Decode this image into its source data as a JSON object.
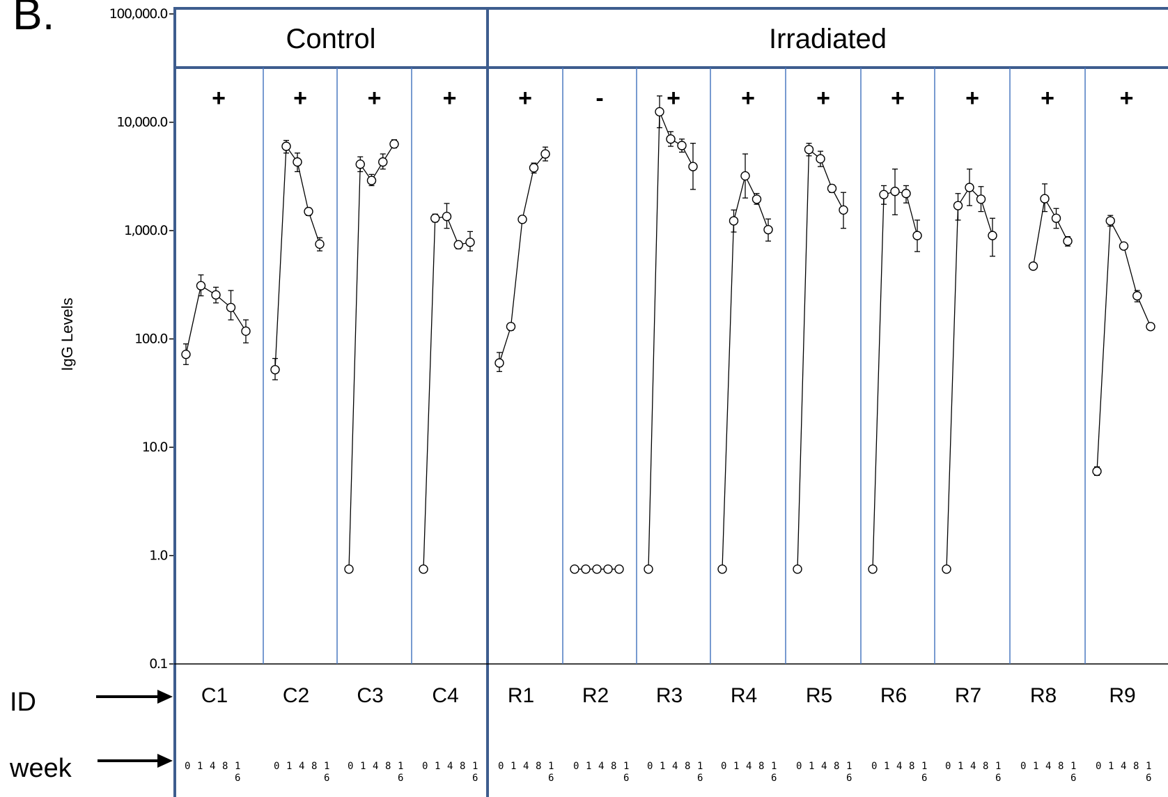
{
  "panel_letter": "B.",
  "row_labels": {
    "id": "ID",
    "week": "week"
  },
  "chart_data": {
    "type": "line",
    "scale": "log",
    "ylabel": "IgG Levels",
    "ylim": [
      0.1,
      100000
    ],
    "y_ticks": [
      "100,000.0",
      "10,000.0",
      "1,000.0",
      "100.0",
      "10.0",
      "1.0",
      "0.1"
    ],
    "x": [
      0,
      1,
      4,
      8,
      16
    ],
    "x_tick_labels": [
      "0",
      "1",
      "4",
      "8",
      "1\n6"
    ],
    "error_bars": true,
    "groups": [
      {
        "name": "Control",
        "subjects": [
          "C1",
          "C2",
          "C3",
          "C4"
        ]
      },
      {
        "name": "Irradiated",
        "subjects": [
          "R1",
          "R2",
          "R3",
          "R4",
          "R5",
          "R6",
          "R7",
          "R8",
          "R9"
        ]
      }
    ],
    "series": [
      {
        "name": "C1",
        "status": "+",
        "values": [
          72,
          310,
          255,
          195,
          118
        ],
        "lower": [
          58,
          250,
          215,
          150,
          92
        ],
        "upper": [
          90,
          390,
          300,
          280,
          150
        ]
      },
      {
        "name": "C2",
        "status": "+",
        "values": [
          52,
          6000,
          4300,
          1500,
          750
        ],
        "lower": [
          42,
          5200,
          3500,
          1380,
          650
        ],
        "upper": [
          66,
          6800,
          5200,
          1620,
          860
        ]
      },
      {
        "name": "C3",
        "status": "+",
        "values": [
          0.75,
          4100,
          2900,
          4300,
          6300
        ],
        "lower": [
          0.7,
          3500,
          2600,
          3700,
          5800
        ],
        "upper": [
          0.8,
          4800,
          3300,
          5100,
          6900
        ]
      },
      {
        "name": "C4",
        "status": "+",
        "values": [
          0.75,
          1300,
          1350,
          740,
          780
        ],
        "lower": [
          0.7,
          1200,
          1050,
          680,
          650
        ],
        "upper": [
          0.8,
          1420,
          1780,
          800,
          980
        ]
      },
      {
        "name": "R1",
        "status": "+",
        "values": [
          60,
          130,
          1270,
          3800,
          5100
        ],
        "lower": [
          50,
          120,
          1180,
          3400,
          4400
        ],
        "upper": [
          75,
          140,
          1370,
          4200,
          5900
        ]
      },
      {
        "name": "R2",
        "status": "-",
        "values": [
          0.75,
          0.75,
          0.75,
          0.75,
          0.75
        ],
        "lower": [
          0.7,
          0.7,
          0.7,
          0.7,
          0.7
        ],
        "upper": [
          0.8,
          0.8,
          0.8,
          0.8,
          0.8
        ]
      },
      {
        "name": "R3",
        "status": "+",
        "values": [
          0.75,
          12500,
          7000,
          6100,
          3900
        ],
        "lower": [
          0.7,
          8900,
          6000,
          5300,
          2400
        ],
        "upper": [
          0.8,
          17500,
          8200,
          7000,
          6400
        ]
      },
      {
        "name": "R4",
        "status": "+",
        "values": [
          0.75,
          1230,
          3200,
          1950,
          1020
        ],
        "lower": [
          0.7,
          970,
          2000,
          1750,
          800
        ],
        "upper": [
          0.8,
          1550,
          5100,
          2200,
          1280
        ]
      },
      {
        "name": "R5",
        "status": "+",
        "values": [
          0.75,
          5600,
          4600,
          2450,
          1550
        ],
        "lower": [
          0.7,
          4900,
          3900,
          2250,
          1050
        ],
        "upper": [
          0.8,
          6400,
          5400,
          2650,
          2250
        ]
      },
      {
        "name": "R6",
        "status": "+",
        "values": [
          0.75,
          2150,
          2300,
          2200,
          900
        ],
        "lower": [
          0.7,
          1750,
          1400,
          1800,
          640
        ],
        "upper": [
          0.8,
          2600,
          3700,
          2600,
          1250
        ]
      },
      {
        "name": "R7",
        "status": "+",
        "values": [
          0.75,
          1700,
          2500,
          1950,
          900
        ],
        "lower": [
          0.7,
          1250,
          1700,
          1500,
          580
        ],
        "upper": [
          0.8,
          2200,
          3700,
          2550,
          1300
        ]
      },
      {
        "name": "R8",
        "status": "+",
        "values": [
          470,
          1970,
          1300,
          800
        ],
        "x": [
          1,
          4,
          8,
          16
        ],
        "lower": [
          440,
          1500,
          1050,
          720
        ],
        "upper": [
          500,
          2700,
          1600,
          880
        ]
      },
      {
        "name": "R9",
        "status": "+",
        "values": [
          6.0,
          1230,
          720,
          250,
          130
        ],
        "lower": [
          5.5,
          1100,
          680,
          220,
          125
        ],
        "upper": [
          6.6,
          1380,
          760,
          280,
          136
        ]
      }
    ]
  }
}
